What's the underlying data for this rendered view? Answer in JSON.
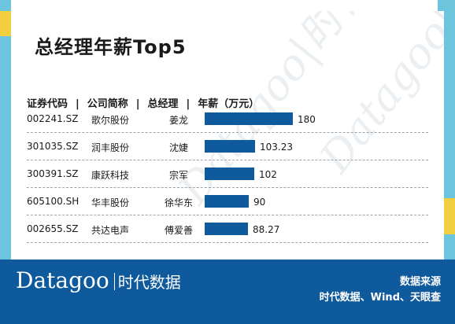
{
  "title": "总经理年薪Top5",
  "watermark": "Datagoo|时代数据",
  "header": {
    "col1": "证券代码",
    "col2": "公司简称",
    "col3": "总经理",
    "col4": "年薪（万元）",
    "sep": "|"
  },
  "chart_data": {
    "type": "bar",
    "title": "总经理年薪Top5",
    "ylabel": "年薪（万元）",
    "categories": [
      "002241.SZ",
      "301035.SZ",
      "300391.SZ",
      "605100.SH",
      "002655.SZ"
    ],
    "values": [
      180,
      103.23,
      102,
      90,
      88.27
    ],
    "value_labels": [
      "180",
      "103.23",
      "102",
      "90",
      "88.27"
    ],
    "rows": [
      {
        "code": "002241.SZ",
        "company": "歌尔股份",
        "manager": "姜龙",
        "salary": 180,
        "salary_label": "180"
      },
      {
        "code": "301035.SZ",
        "company": "润丰股份",
        "manager": "沈婕",
        "salary": 103.23,
        "salary_label": "103.23"
      },
      {
        "code": "300391.SZ",
        "company": "康跃科技",
        "manager": "宗军",
        "salary": 102,
        "salary_label": "102"
      },
      {
        "code": "605100.SH",
        "company": "华丰股份",
        "manager": "徐华东",
        "salary": 90,
        "salary_label": "90"
      },
      {
        "code": "002655.SZ",
        "company": "共达电声",
        "manager": "傅爱善",
        "salary": 88.27,
        "salary_label": "88.27"
      }
    ],
    "bar_color": "#0e5a9c"
  },
  "footer": {
    "logo_en": "Datagoo",
    "logo_cn": "时代数据",
    "source_title": "数据来源",
    "source_text": "时代数据、Wind、天眼查"
  },
  "colors": {
    "accent_blue": "#0e5a9c",
    "frame_cyan": "#6cc4dd",
    "frame_yellow": "#f2cf3e"
  }
}
